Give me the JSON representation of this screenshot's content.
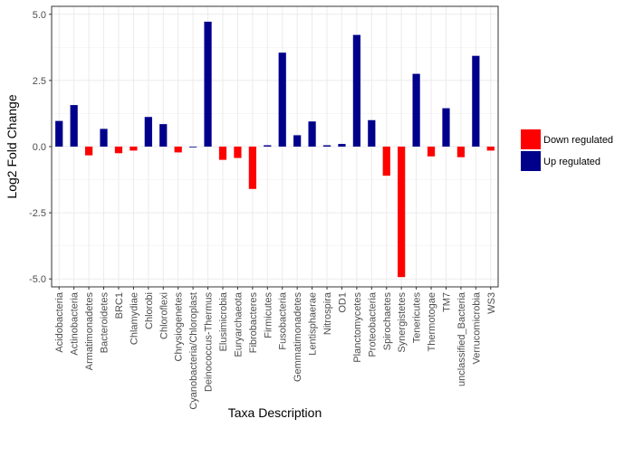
{
  "chart_data": {
    "type": "bar",
    "title": "",
    "xlabel": "Taxa Description",
    "ylabel": "Log2 Fold Change",
    "ylim": [
      -5.3,
      5.3
    ],
    "yticks": [
      5.0,
      2.5,
      0.0,
      -2.5,
      -5.0
    ],
    "ytick_labels": [
      "5.0",
      "2.5",
      "0.0",
      "-2.5",
      "-5.0"
    ],
    "grid": true,
    "legend_position": "right",
    "categories": [
      "Acidobacteria",
      "Actinobacteria",
      "Armatimonadetes",
      "Bacteroidetes",
      "BRC1",
      "Chlamydiae",
      "Chlorobi",
      "Chloroflexi",
      "Chrysiogenetes",
      "Cyanobacteria/Chloroplast",
      "Deinococcus-Thermus",
      "Elusimicrobia",
      "Euryarchaeota",
      "Fibrobacteres",
      "Firmicutes",
      "Fusobacteria",
      "Gemmatimonadetes",
      "Lentisphaerae",
      "Nitrospira",
      "OD1",
      "Planctomycetes",
      "Proteobacteria",
      "Spirochaetes",
      "Synergistetes",
      "Tenericutes",
      "Thermotogae",
      "TM7",
      "unclassified_Bacteria",
      "Verrucomicrobia",
      "WS3"
    ],
    "values": [
      0.97,
      1.57,
      -0.33,
      0.67,
      -0.25,
      -0.15,
      1.12,
      0.85,
      -0.22,
      0.0,
      4.72,
      -0.5,
      -0.43,
      -1.6,
      0.05,
      3.55,
      0.43,
      0.95,
      0.05,
      0.1,
      4.22,
      1.0,
      -1.1,
      -4.93,
      2.75,
      -0.37,
      1.45,
      -0.4,
      3.43,
      -0.15
    ],
    "series": [
      {
        "name": "Down regulated",
        "color": "#ff0000"
      },
      {
        "name": "Up regulated",
        "color": "#00008b"
      }
    ]
  }
}
